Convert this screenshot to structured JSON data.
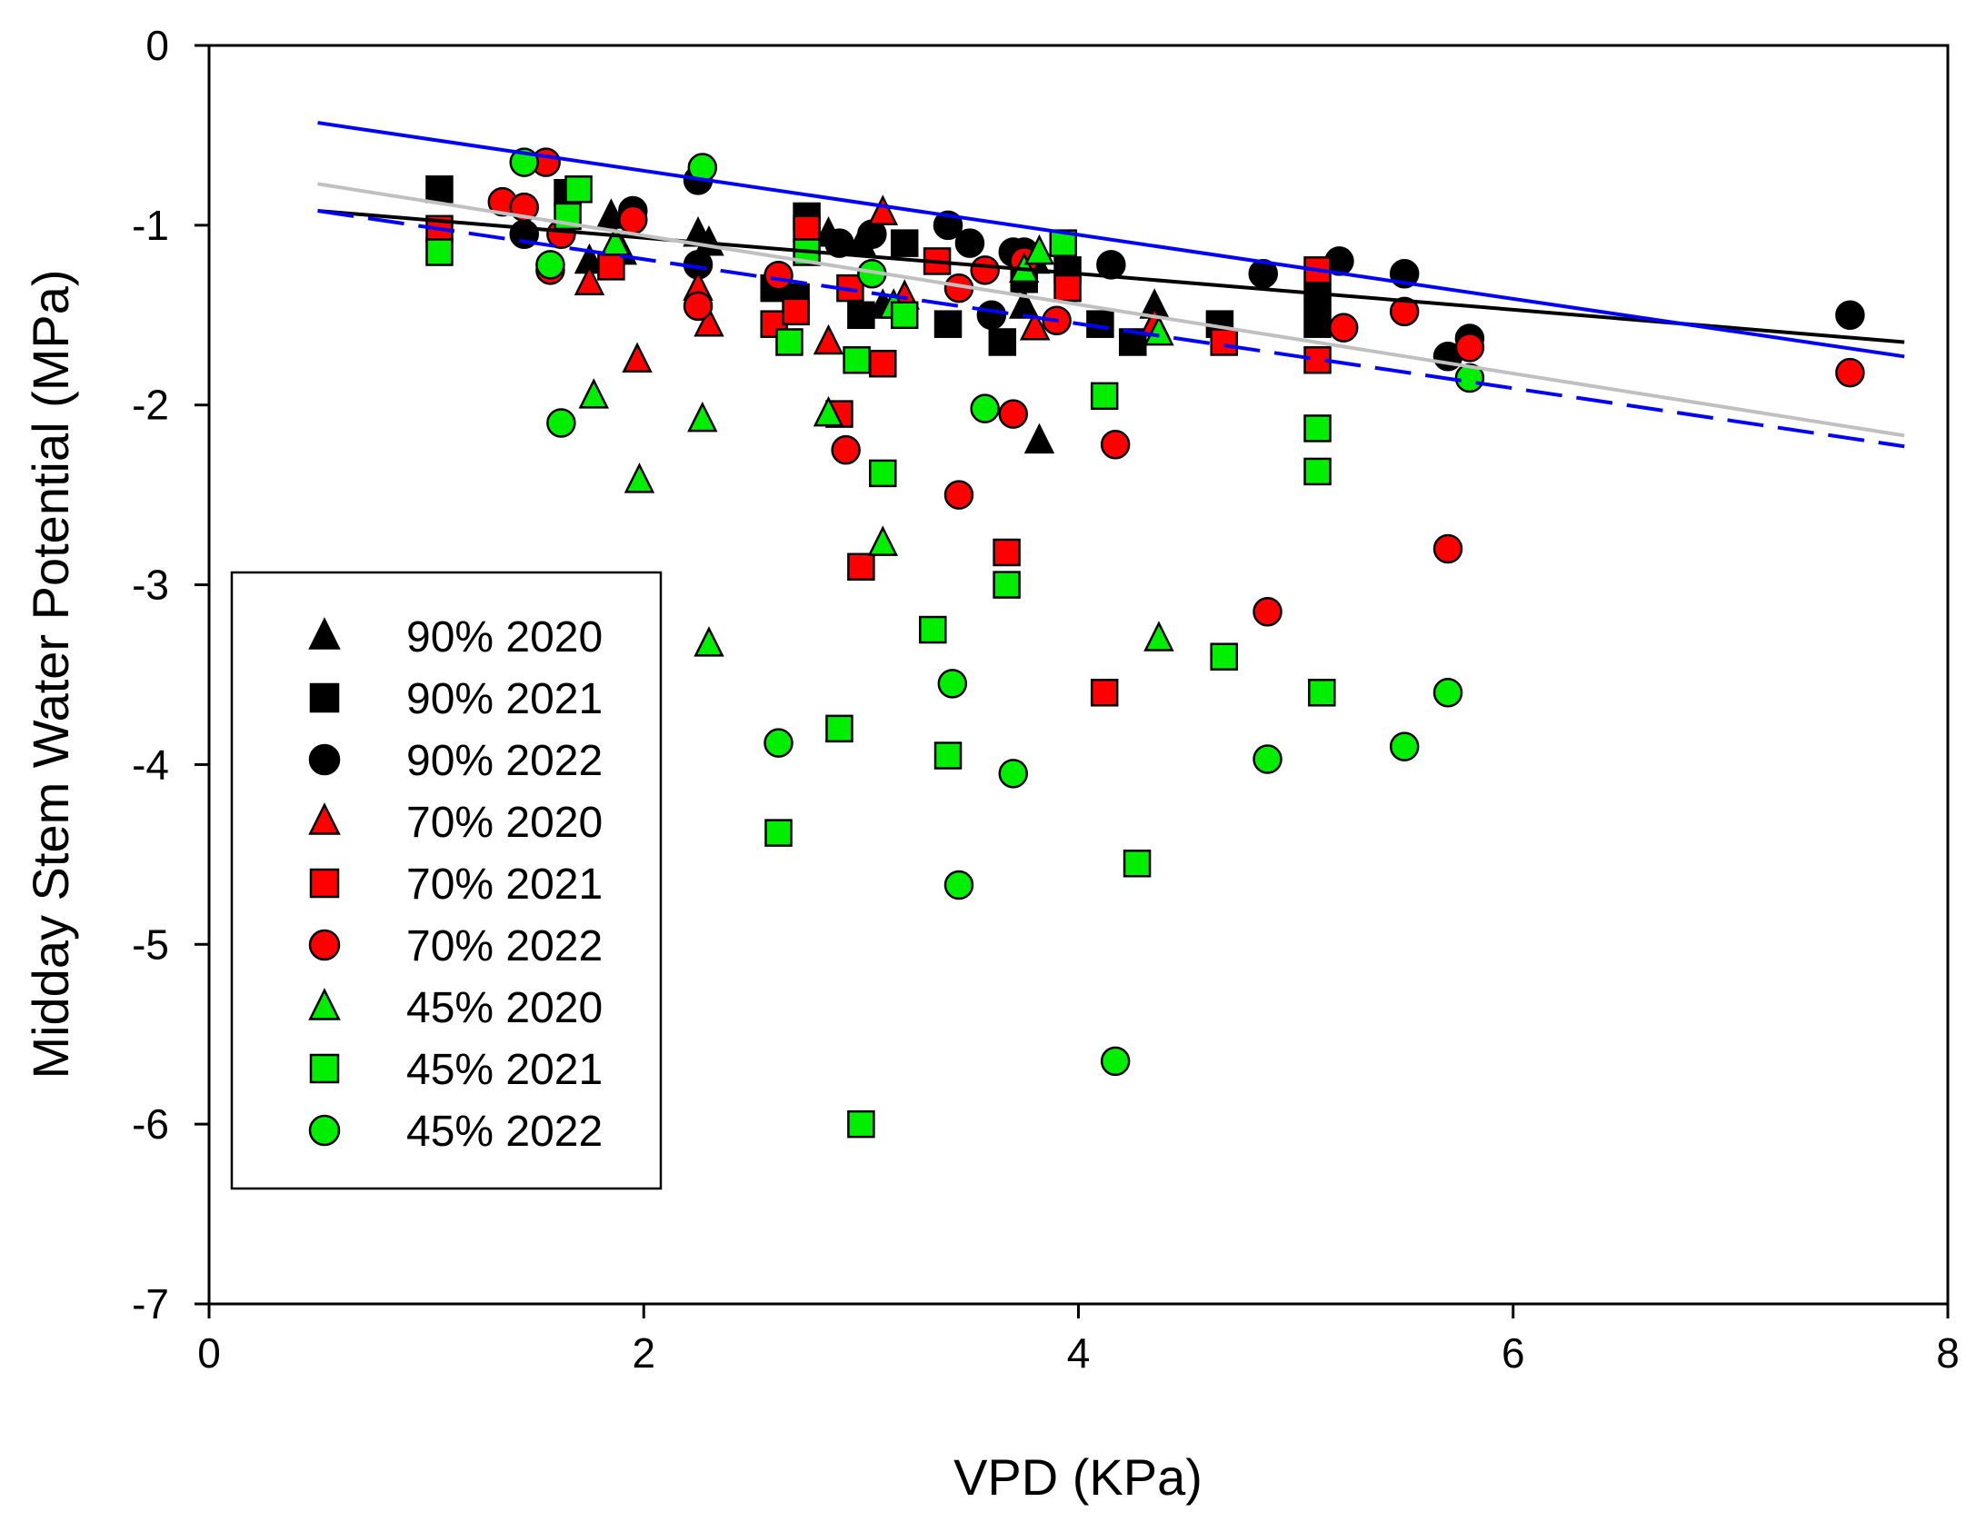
{
  "chart_data": {
    "type": "scatter",
    "xlabel": "VPD (KPa)",
    "ylabel": "Midday Stem Water Potential (MPa)",
    "xlim": [
      0,
      8
    ],
    "ylim": [
      -7,
      0
    ],
    "xticks": [
      "0",
      "2",
      "4",
      "6",
      "8"
    ],
    "yticks": [
      "0",
      "-1",
      "-2",
      "-3",
      "-4",
      "-5",
      "-6",
      "-7"
    ],
    "grid": false,
    "legend_position": "left-middle",
    "colors": {
      "black": "#000000",
      "red": "#ff0000",
      "green": "#00ee00",
      "blue": "#0000ff",
      "gray": "#c0c0c0"
    },
    "series": [
      {
        "name": "90% 2020",
        "marker": "triangle",
        "color": "#000000",
        "points": [
          [
            1.75,
            -1.2
          ],
          [
            1.85,
            -0.95
          ],
          [
            1.9,
            -1.15
          ],
          [
            2.25,
            -1.05
          ],
          [
            2.3,
            -1.1
          ],
          [
            2.85,
            -1.05
          ],
          [
            3.0,
            -1.1
          ],
          [
            3.1,
            -1.45
          ],
          [
            3.75,
            -1.45
          ],
          [
            3.8,
            -1.2
          ],
          [
            3.82,
            -2.2
          ],
          [
            4.35,
            -1.45
          ]
        ]
      },
      {
        "name": "90% 2021",
        "marker": "square",
        "color": "#000000",
        "points": [
          [
            1.06,
            -0.8
          ],
          [
            1.65,
            -0.82
          ],
          [
            2.6,
            -1.35
          ],
          [
            2.7,
            -1.4
          ],
          [
            2.75,
            -0.95
          ],
          [
            3.0,
            -1.5
          ],
          [
            3.2,
            -1.1
          ],
          [
            3.4,
            -1.55
          ],
          [
            3.65,
            -1.65
          ],
          [
            3.75,
            -1.3
          ],
          [
            3.95,
            -1.25
          ],
          [
            4.1,
            -1.55
          ],
          [
            4.25,
            -1.65
          ],
          [
            4.65,
            -1.55
          ],
          [
            5.1,
            -1.4
          ],
          [
            5.1,
            -1.55
          ]
        ]
      },
      {
        "name": "90% 2022",
        "marker": "circle",
        "color": "#000000",
        "points": [
          [
            1.45,
            -1.05
          ],
          [
            1.95,
            -0.92
          ],
          [
            2.25,
            -0.75
          ],
          [
            2.25,
            -1.22
          ],
          [
            2.9,
            -1.1
          ],
          [
            3.05,
            -1.05
          ],
          [
            3.4,
            -1.0
          ],
          [
            3.5,
            -1.1
          ],
          [
            3.6,
            -1.5
          ],
          [
            3.7,
            -1.15
          ],
          [
            3.75,
            -1.15
          ],
          [
            4.15,
            -1.22
          ],
          [
            4.85,
            -1.27
          ],
          [
            5.2,
            -1.2
          ],
          [
            5.5,
            -1.27
          ],
          [
            5.7,
            -1.73
          ],
          [
            5.8,
            -1.63
          ],
          [
            7.55,
            -1.5
          ]
        ]
      },
      {
        "name": "70% 2020",
        "marker": "triangle",
        "color": "#ff0000",
        "points": [
          [
            1.75,
            -1.32
          ],
          [
            1.97,
            -1.75
          ],
          [
            2.25,
            -1.35
          ],
          [
            2.3,
            -1.55
          ],
          [
            2.85,
            -1.65
          ],
          [
            3.1,
            -0.93
          ],
          [
            3.2,
            -1.4
          ],
          [
            3.8,
            -1.57
          ],
          [
            4.35,
            -1.55
          ]
        ]
      },
      {
        "name": "70% 2021",
        "marker": "square",
        "color": "#ff0000",
        "points": [
          [
            1.06,
            -1.02
          ],
          [
            1.85,
            -1.23
          ],
          [
            2.6,
            -1.55
          ],
          [
            2.7,
            -1.48
          ],
          [
            2.75,
            -1.02
          ],
          [
            2.9,
            -2.05
          ],
          [
            2.95,
            -1.35
          ],
          [
            3.0,
            -2.9
          ],
          [
            3.1,
            -1.77
          ],
          [
            3.35,
            -1.2
          ],
          [
            3.67,
            -2.82
          ],
          [
            3.95,
            -1.35
          ],
          [
            4.12,
            -3.6
          ],
          [
            4.67,
            -1.65
          ],
          [
            5.1,
            -1.25
          ],
          [
            5.1,
            -1.75
          ]
        ]
      },
      {
        "name": "70% 2022",
        "marker": "circle",
        "color": "#ff0000",
        "points": [
          [
            1.35,
            -0.87
          ],
          [
            1.45,
            -0.9
          ],
          [
            1.55,
            -0.65
          ],
          [
            1.57,
            -1.25
          ],
          [
            1.62,
            -1.05
          ],
          [
            1.95,
            -0.97
          ],
          [
            2.25,
            -1.45
          ],
          [
            2.62,
            -1.28
          ],
          [
            2.93,
            -2.25
          ],
          [
            3.45,
            -2.5
          ],
          [
            3.45,
            -1.35
          ],
          [
            3.57,
            -1.25
          ],
          [
            3.7,
            -2.05
          ],
          [
            3.75,
            -1.2
          ],
          [
            3.9,
            -1.53
          ],
          [
            4.17,
            -2.22
          ],
          [
            4.87,
            -3.15
          ],
          [
            5.22,
            -1.57
          ],
          [
            5.5,
            -1.48
          ],
          [
            5.7,
            -2.8
          ],
          [
            5.8,
            -1.68
          ],
          [
            7.55,
            -1.82
          ]
        ]
      },
      {
        "name": "45% 2020",
        "marker": "triangle",
        "color": "#00ee00",
        "points": [
          [
            1.77,
            -1.95
          ],
          [
            1.87,
            -1.1
          ],
          [
            1.98,
            -2.42
          ],
          [
            2.27,
            -2.08
          ],
          [
            2.3,
            -3.33
          ],
          [
            2.85,
            -2.05
          ],
          [
            3.1,
            -2.77
          ],
          [
            3.15,
            -1.45
          ],
          [
            3.75,
            -1.25
          ],
          [
            3.82,
            -1.15
          ],
          [
            4.37,
            -1.6
          ],
          [
            4.37,
            -3.3
          ]
        ]
      },
      {
        "name": "45% 2021",
        "marker": "square",
        "color": "#00ee00",
        "points": [
          [
            1.06,
            -1.15
          ],
          [
            1.65,
            -0.95
          ],
          [
            1.7,
            -0.8
          ],
          [
            2.62,
            -4.38
          ],
          [
            2.67,
            -1.65
          ],
          [
            2.75,
            -1.15
          ],
          [
            2.9,
            -3.8
          ],
          [
            2.98,
            -1.75
          ],
          [
            3.0,
            -6.0
          ],
          [
            3.1,
            -2.38
          ],
          [
            3.2,
            -1.5
          ],
          [
            3.33,
            -3.25
          ],
          [
            3.4,
            -3.95
          ],
          [
            3.67,
            -3.0
          ],
          [
            3.93,
            -1.1
          ],
          [
            4.12,
            -1.95
          ],
          [
            4.27,
            -4.55
          ],
          [
            4.67,
            -3.4
          ],
          [
            5.1,
            -2.13
          ],
          [
            5.1,
            -2.37
          ],
          [
            5.12,
            -3.6
          ]
        ]
      },
      {
        "name": "45% 2022",
        "marker": "circle",
        "color": "#00ee00",
        "points": [
          [
            1.45,
            -0.65
          ],
          [
            1.57,
            -1.22
          ],
          [
            1.62,
            -2.1
          ],
          [
            2.27,
            -0.68
          ],
          [
            2.62,
            -3.88
          ],
          [
            3.05,
            -1.27
          ],
          [
            3.42,
            -3.55
          ],
          [
            3.45,
            -4.67
          ],
          [
            3.57,
            -2.02
          ],
          [
            3.7,
            -4.05
          ],
          [
            4.17,
            -5.65
          ],
          [
            4.87,
            -3.97
          ],
          [
            5.5,
            -3.9
          ],
          [
            5.7,
            -3.6
          ],
          [
            5.8,
            -1.85
          ]
        ]
      }
    ],
    "regression_lines": [
      {
        "name": "90% fit",
        "color": "#000000",
        "style": "solid",
        "x": [
          0.5,
          7.8
        ],
        "y": [
          -0.92,
          -1.65
        ]
      },
      {
        "name": "70% fit",
        "color": "#0000ff",
        "style": "solid",
        "x": [
          0.5,
          7.8
        ],
        "y": [
          -0.43,
          -1.73
        ]
      },
      {
        "name": "70% fit dashed",
        "color": "#0000ff",
        "style": "dashed",
        "x": [
          0.5,
          7.8
        ],
        "y": [
          -0.92,
          -2.23
        ]
      },
      {
        "name": "45% fit",
        "color": "#c0c0c0",
        "style": "solid",
        "x": [
          0.5,
          7.8
        ],
        "y": [
          -0.77,
          -2.17
        ]
      }
    ]
  }
}
